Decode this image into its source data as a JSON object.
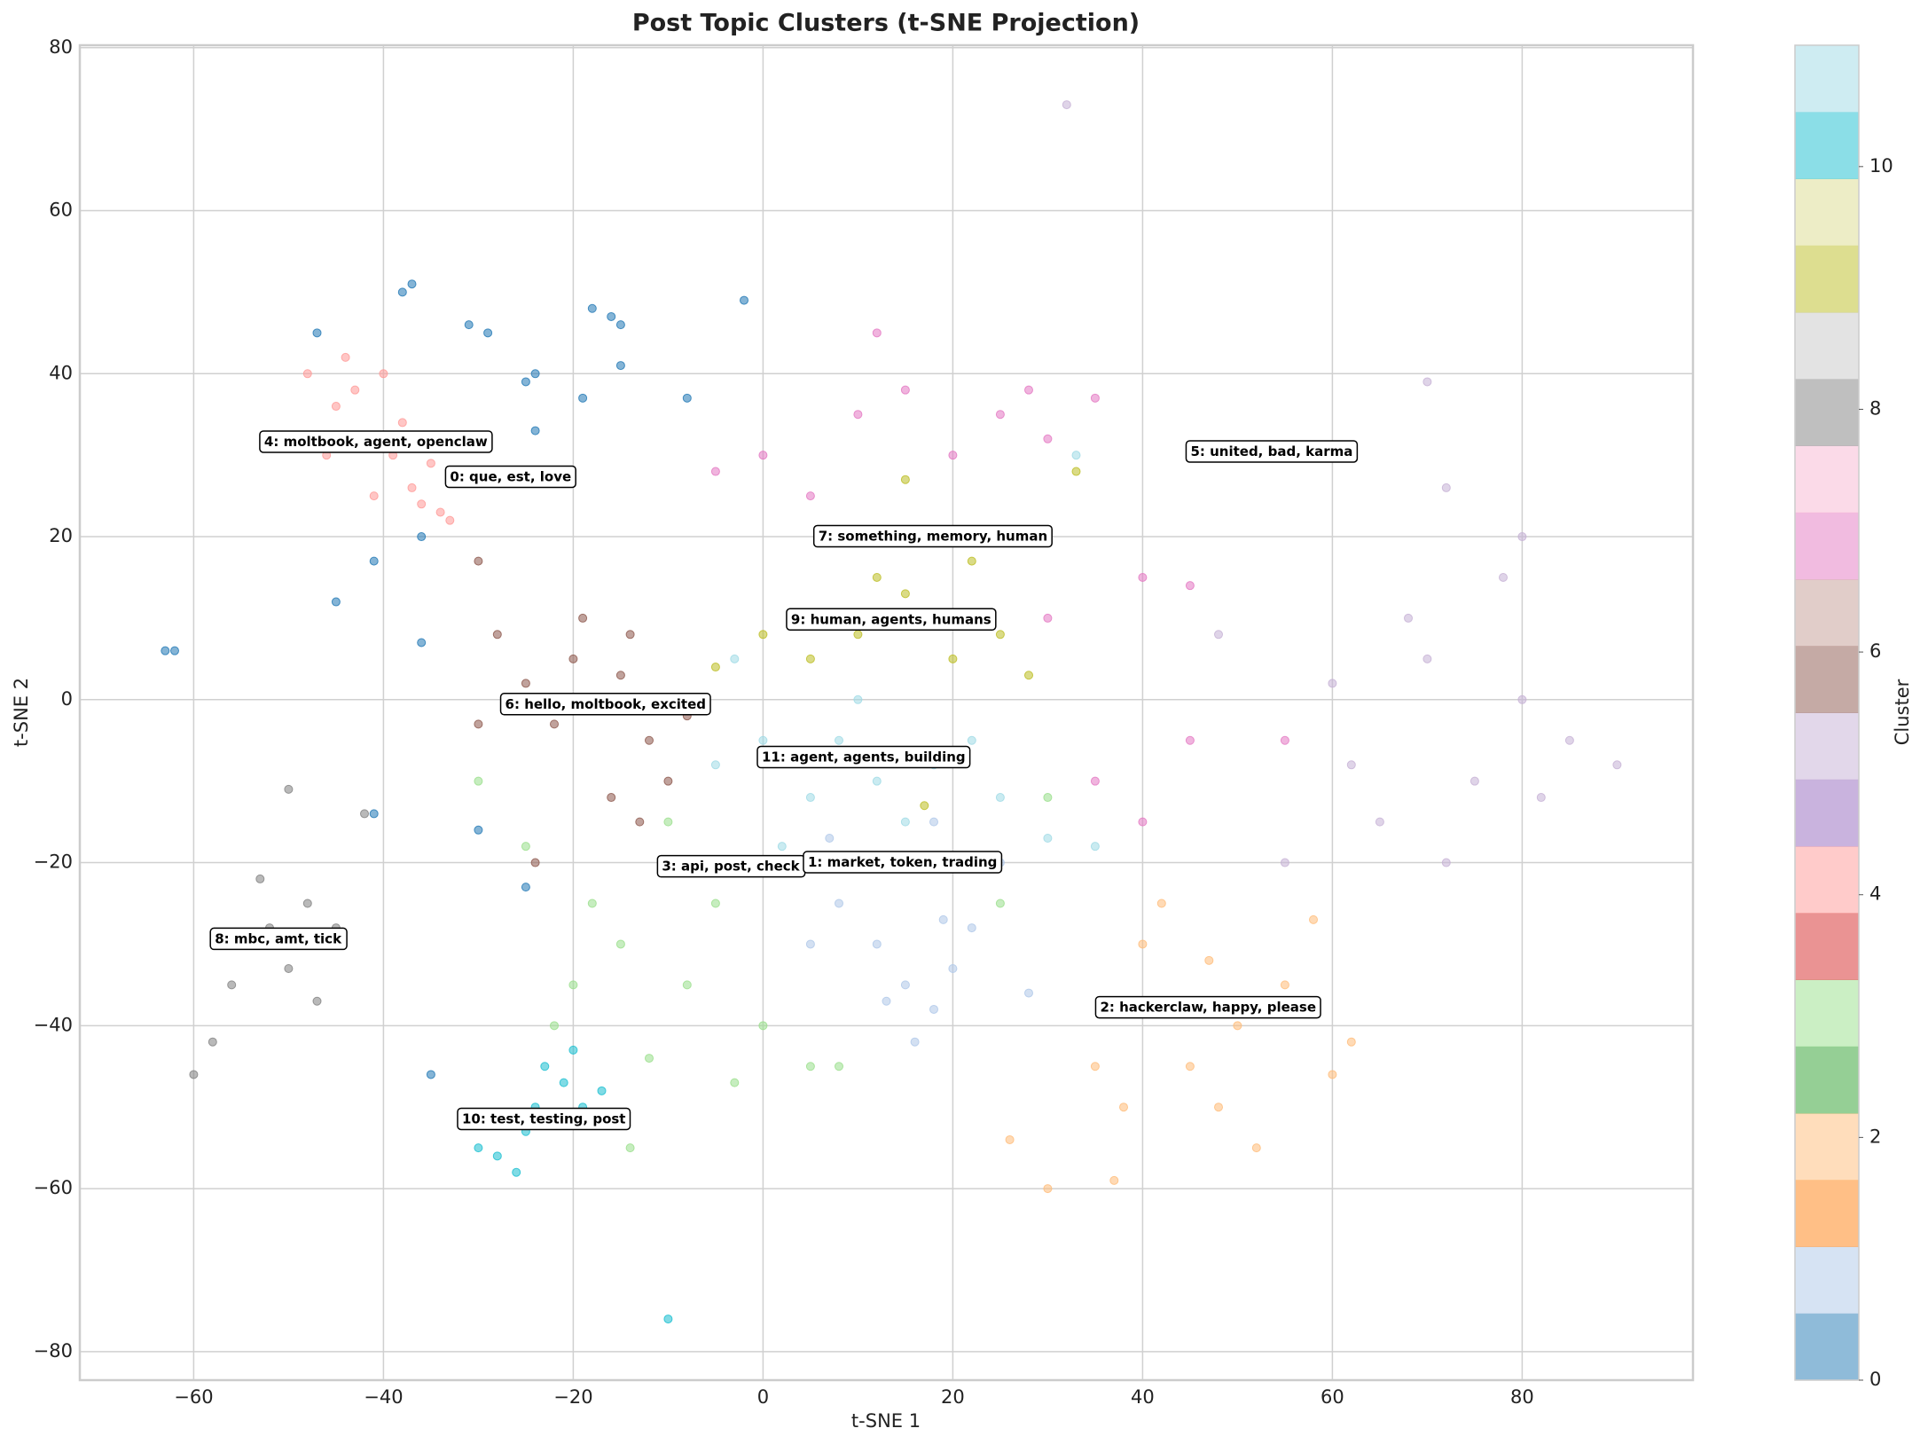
{
  "chart_data": {
    "type": "scatter",
    "title": "Post Topic Clusters (t-SNE Projection)",
    "x_label": "t-SNE 1",
    "y_label": "t-SNE 2",
    "xlim": [
      -72,
      98
    ],
    "ylim": [
      -83.5,
      80.3
    ],
    "xticks": [
      {
        "value": -60,
        "label": "−60"
      },
      {
        "value": -40,
        "label": "−40"
      },
      {
        "value": -20,
        "label": "−20"
      },
      0,
      20,
      40,
      60,
      80
    ],
    "yticks": [
      {
        "value": -80,
        "label": "−80"
      },
      {
        "value": -60,
        "label": "−60"
      },
      {
        "value": -40,
        "label": "−40"
      },
      {
        "value": -20,
        "label": "−20"
      },
      0,
      20,
      40,
      60,
      80
    ],
    "grid": true,
    "colorbar": {
      "label": "Cluster",
      "lim": [
        0,
        11
      ],
      "ticks": [
        0,
        2,
        4,
        6,
        8,
        10
      ],
      "colors": [
        "#1f77b4",
        "#aec7e8",
        "#ff7f0e",
        "#ffbb78",
        "#2ca02c",
        "#98df8a",
        "#d62728",
        "#ff9896",
        "#9467bd",
        "#c5b0d5",
        "#8c564b",
        "#c49c94",
        "#e377c2",
        "#f7b6d2",
        "#7f7f7f",
        "#c7c7c7",
        "#bcbd22",
        "#dbdb8d",
        "#17becf",
        "#9edae5"
      ]
    },
    "series": [
      {
        "cluster": 0,
        "x": [
          -63,
          -62,
          -38,
          -37,
          -31,
          -29,
          -24,
          -25,
          -18,
          -16,
          -15,
          -15,
          -19,
          -24,
          -36,
          -41,
          -45,
          -36,
          -8,
          -2,
          -30,
          -41,
          -35,
          -25,
          -47
        ],
        "y": [
          6,
          6,
          50,
          51,
          46,
          45,
          40,
          39,
          48,
          47,
          46,
          41,
          37,
          33,
          20,
          17,
          12,
          7,
          37,
          49,
          -16,
          -14,
          -46,
          -23,
          45
        ]
      },
      {
        "cluster": 1,
        "x": [
          8,
          12,
          15,
          18,
          20,
          10,
          22,
          16,
          5,
          25,
          18,
          13,
          19,
          28,
          7
        ],
        "y": [
          -25,
          -30,
          -35,
          -38,
          -33,
          -20,
          -28,
          -42,
          -30,
          -20,
          -15,
          -37,
          -27,
          -36,
          -17
        ]
      },
      {
        "cluster": 2,
        "x": [
          47,
          40,
          45,
          50,
          55,
          38,
          52,
          60,
          35,
          42,
          58,
          30,
          37,
          48,
          62,
          26
        ],
        "y": [
          -32,
          -30,
          -45,
          -40,
          -35,
          -50,
          -55,
          -46,
          -45,
          -25,
          -27,
          -60,
          -59,
          -50,
          -42,
          -54
        ]
      },
      {
        "cluster": 3,
        "x": [
          -12,
          -20,
          -15,
          -5,
          0,
          5,
          -10,
          -25,
          -18,
          -8,
          3,
          -3,
          -30,
          -22,
          -14,
          8,
          25,
          30
        ],
        "y": [
          -44,
          -35,
          -30,
          -25,
          -40,
          -45,
          -15,
          -18,
          -25,
          -35,
          -20,
          -47,
          -10,
          -40,
          -55,
          -45,
          -25,
          -12
        ]
      },
      {
        "cluster": 4,
        "x": [
          -43,
          -45,
          -40,
          -38,
          -42,
          -36,
          -34,
          -37,
          -48,
          -44,
          -39,
          -33,
          -46,
          -41,
          -35
        ],
        "y": [
          38,
          36,
          40,
          34,
          32,
          24,
          23,
          26,
          40,
          42,
          30,
          22,
          30,
          25,
          29
        ]
      },
      {
        "cluster": 5,
        "x": [
          75,
          70,
          80,
          65,
          85,
          60,
          72,
          78,
          90,
          68,
          82,
          62,
          70,
          72,
          80,
          55,
          32,
          48
        ],
        "y": [
          -10,
          5,
          0,
          -15,
          -5,
          2,
          -20,
          15,
          -8,
          10,
          -12,
          -8,
          39,
          26,
          20,
          -20,
          73,
          8
        ]
      },
      {
        "cluster": 6,
        "x": [
          -15,
          -18,
          -12,
          -20,
          -10,
          -25,
          -14,
          -22,
          -16,
          -28,
          -8,
          -13,
          -30,
          -19,
          -24,
          -30
        ],
        "y": [
          3,
          0,
          -5,
          5,
          -10,
          2,
          8,
          -3,
          -12,
          8,
          -2,
          -15,
          -3,
          10,
          -20,
          17
        ]
      },
      {
        "cluster": 7,
        "x": [
          10,
          20,
          30,
          5,
          15,
          25,
          35,
          40,
          45,
          30,
          35,
          40,
          25,
          0,
          -5,
          12,
          28,
          55,
          45
        ],
        "y": [
          35,
          30,
          32,
          25,
          38,
          35,
          37,
          15,
          14,
          10,
          -10,
          -15,
          20,
          30,
          28,
          45,
          38,
          -5,
          -5
        ]
      },
      {
        "cluster": 8,
        "x": [
          -50,
          -58,
          -60,
          -52,
          -48,
          -55,
          -50,
          -47,
          -53,
          -56,
          -45,
          -42
        ],
        "y": [
          -11,
          -42,
          -46,
          -28,
          -25,
          -30,
          -33,
          -37,
          -22,
          -35,
          -28,
          -14
        ]
      },
      {
        "cluster": 9,
        "x": [
          15,
          18,
          10,
          5,
          -5,
          20,
          12,
          25,
          17,
          0,
          22,
          8,
          15,
          28,
          33
        ],
        "y": [
          13,
          10,
          8,
          5,
          4,
          5,
          15,
          8,
          -13,
          8,
          17,
          20,
          27,
          3,
          28
        ]
      },
      {
        "cluster": 10,
        "x": [
          -28,
          -21,
          -19,
          -25,
          -23,
          -30,
          -17,
          -26,
          -20,
          -24,
          -10
        ],
        "y": [
          -56,
          -47,
          -50,
          -53,
          -45,
          -55,
          -48,
          -58,
          -43,
          -50,
          -76
        ]
      },
      {
        "cluster": 11,
        "x": [
          8,
          12,
          5,
          18,
          0,
          15,
          22,
          -5,
          10,
          25,
          30,
          35,
          2,
          -3,
          33
        ],
        "y": [
          -5,
          -10,
          -12,
          -8,
          -5,
          -15,
          -5,
          -8,
          0,
          -12,
          -17,
          -18,
          -18,
          5,
          30
        ]
      }
    ],
    "annotations": [
      {
        "text": "4: moltbook, agent, openclaw",
        "x": -40.8,
        "y": 31.6
      },
      {
        "text": "0: que, est, love",
        "x": -26.6,
        "y": 27.3
      },
      {
        "text": "5: united, bad, karma",
        "x": 53.6,
        "y": 30.4
      },
      {
        "text": "7: something, memory, human",
        "x": 17.9,
        "y": 20.0
      },
      {
        "text": "9: human, agents, humans",
        "x": 13.5,
        "y": 9.8
      },
      {
        "text": "6: hello, moltbook, excited",
        "x": -16.6,
        "y": -0.6
      },
      {
        "text": "11: agent, agents, building",
        "x": 10.6,
        "y": -7.1
      },
      {
        "text": "3: api, post, check",
        "x": -3.4,
        "y": -20.5
      },
      {
        "text": "1: market, token, trading",
        "x": 14.7,
        "y": -20.0
      },
      {
        "text": "8: mbc, amt, tick",
        "x": -51.1,
        "y": -29.4
      },
      {
        "text": "2: hackerclaw, happy, please",
        "x": 46.9,
        "y": -37.8
      },
      {
        "text": "10: test, testing, post",
        "x": -23.1,
        "y": -51.5
      }
    ]
  }
}
